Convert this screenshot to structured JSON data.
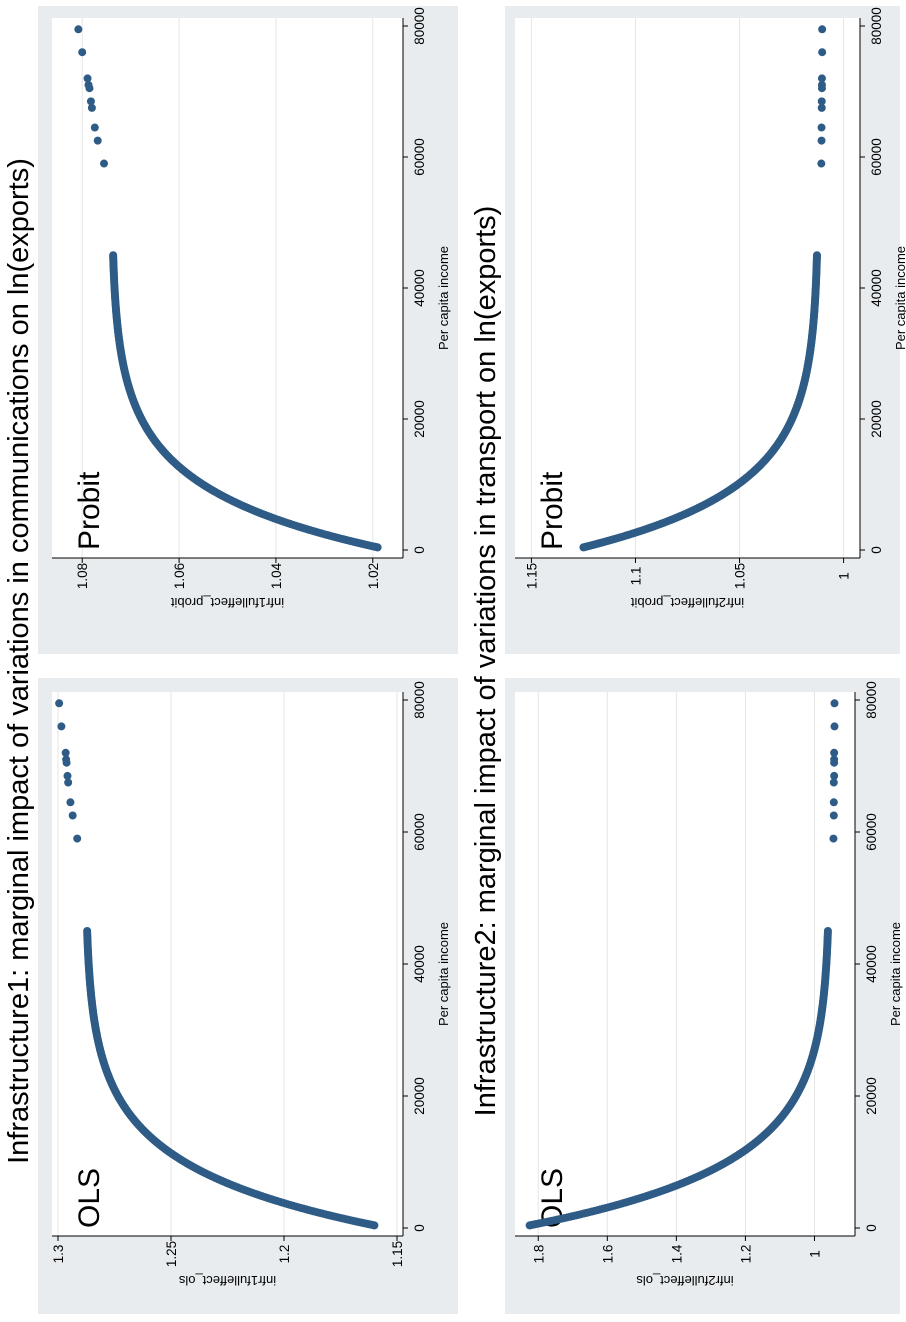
{
  "figure": {
    "top_title": "Infrastructure2: marginal impact of variations in transport on ln(exports)",
    "bottom_title": "Infrastructure1: marginal impact of variations in communications on ln(exports)",
    "colors": {
      "marker": "#2e5c86",
      "panel_bg": "#e8ecef",
      "plot_bg": "#ffffff",
      "grid": "#e6e6e6"
    }
  },
  "chart_data": [
    {
      "id": "infra2_ols",
      "type": "scatter",
      "panel_label": "OLS",
      "xlabel": "Per capita income",
      "ylabel": "infr2fulleffect_ols",
      "xlim": [
        0,
        80000
      ],
      "ylim": [
        0.9,
        1.85
      ],
      "xticks": [
        0,
        20000,
        40000,
        60000,
        80000
      ],
      "yticks": [
        1,
        1.2,
        1.4,
        1.6,
        1.8
      ],
      "ytick_labels": [
        "1",
        "1.2",
        "1.4",
        "1.6",
        "1.8"
      ],
      "curve": {
        "min_income": 400,
        "max_income": 45000,
        "value_at_min": 1.825,
        "value_at_max": 0.99,
        "asymptote": 0.955,
        "decay_scale": 9000
      },
      "outliers": [
        [
          59000,
          0.945
        ],
        [
          62500,
          0.944
        ],
        [
          64500,
          0.944
        ],
        [
          67500,
          0.944
        ],
        [
          68500,
          0.943
        ],
        [
          70500,
          0.943
        ],
        [
          71000,
          0.943
        ],
        [
          72000,
          0.943
        ],
        [
          76000,
          0.942
        ],
        [
          79500,
          0.942
        ]
      ]
    },
    {
      "id": "infra2_probit",
      "type": "scatter",
      "panel_label": "Probit",
      "xlabel": "Per capita income",
      "ylabel": "infr2fulleffect_probit",
      "xlim": [
        0,
        80000
      ],
      "ylim": [
        0.995,
        1.155
      ],
      "xticks": [
        0,
        20000,
        40000,
        60000,
        80000
      ],
      "yticks": [
        1,
        1.05,
        1.1,
        1.15
      ],
      "ytick_labels": [
        "1",
        "1.05",
        "1.1",
        "1.15"
      ],
      "curve": {
        "min_income": 400,
        "max_income": 45000,
        "value_at_min": 1.125,
        "value_at_max": 1.0175,
        "asymptote": 1.012,
        "decay_scale": 9000
      },
      "outliers": [
        [
          59000,
          1.0107
        ],
        [
          62500,
          1.0106
        ],
        [
          64500,
          1.0106
        ],
        [
          67500,
          1.0105
        ],
        [
          68500,
          1.0105
        ],
        [
          70500,
          1.0104
        ],
        [
          71000,
          1.0104
        ],
        [
          72000,
          1.0104
        ],
        [
          76000,
          1.0103
        ],
        [
          79500,
          1.0103
        ]
      ]
    },
    {
      "id": "infra1_ols",
      "type": "scatter",
      "panel_label": "OLS",
      "xlabel": "Per capita income",
      "ylabel": "infr1fulleffect_ols",
      "xlim": [
        0,
        80000
      ],
      "ylim": [
        1.15,
        1.3
      ],
      "xticks": [
        0,
        20000,
        40000,
        60000,
        80000
      ],
      "yticks": [
        1.15,
        1.2,
        1.25,
        1.3
      ],
      "ytick_labels": [
        "1.15",
        "1.2",
        "1.25",
        "1.3"
      ],
      "curve": {
        "min_income": 400,
        "max_income": 45000,
        "value_at_min": 1.16,
        "value_at_max": 1.286,
        "asymptote": 1.288,
        "decay_scale": 9000
      },
      "outliers": [
        [
          59000,
          1.2915
        ],
        [
          62500,
          1.2935
        ],
        [
          64500,
          1.2945
        ],
        [
          67500,
          1.2955
        ],
        [
          68500,
          1.2958
        ],
        [
          70500,
          1.2962
        ],
        [
          71000,
          1.2964
        ],
        [
          72000,
          1.2966
        ],
        [
          76000,
          1.2985
        ],
        [
          79500,
          1.2995
        ]
      ]
    },
    {
      "id": "infra1_probit",
      "type": "scatter",
      "panel_label": "Probit",
      "xlabel": "Per capita income",
      "ylabel": "infr1fulleffect_probit",
      "xlim": [
        0,
        80000
      ],
      "ylim": [
        1.015,
        1.085
      ],
      "xticks": [
        0,
        20000,
        40000,
        60000,
        80000
      ],
      "yticks": [
        1.02,
        1.04,
        1.06,
        1.08
      ],
      "ytick_labels": [
        "1.02",
        "1.04",
        "1.06",
        "1.08"
      ],
      "curve": {
        "min_income": 400,
        "max_income": 45000,
        "value_at_min": 1.019,
        "value_at_max": 1.073,
        "asymptote": 1.074,
        "decay_scale": 9000
      },
      "outliers": [
        [
          59000,
          1.0755
        ],
        [
          62500,
          1.0768
        ],
        [
          64500,
          1.0774
        ],
        [
          67500,
          1.078
        ],
        [
          68500,
          1.0782
        ],
        [
          70500,
          1.0785
        ],
        [
          71000,
          1.0787
        ],
        [
          72000,
          1.0789
        ],
        [
          76000,
          1.08
        ],
        [
          79500,
          1.0808
        ]
      ]
    }
  ]
}
